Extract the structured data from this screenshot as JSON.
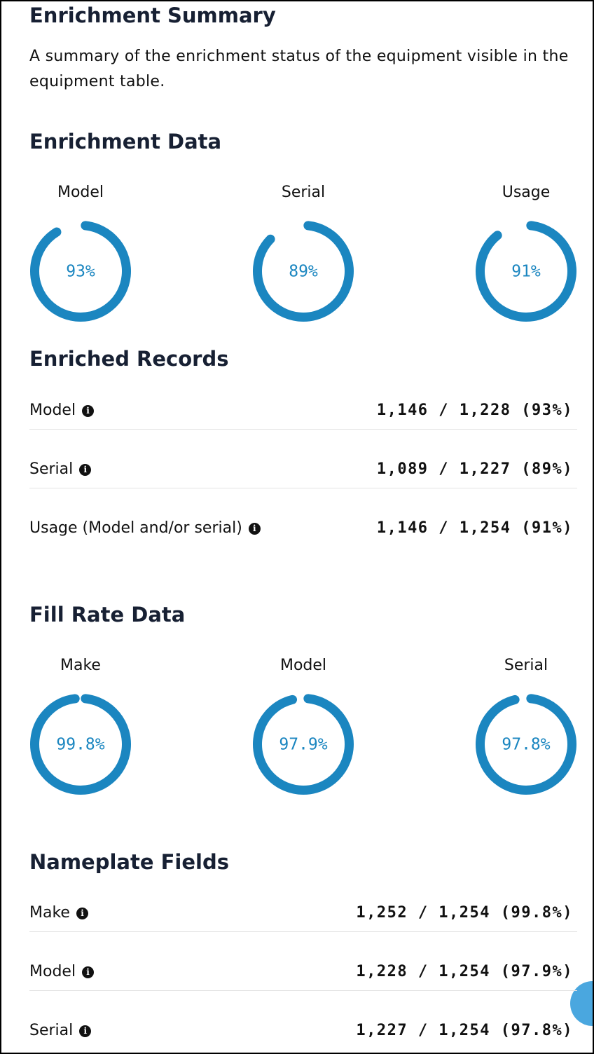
{
  "header": {
    "title": "Enrichment Summary",
    "description": "A summary of the enrichment status of the equipment visible in the equipment table."
  },
  "enrichment_data": {
    "title": "Enrichment Data",
    "gauges": [
      {
        "label": "Model",
        "value": 93,
        "value_label": "93%"
      },
      {
        "label": "Serial",
        "value": 89,
        "value_label": "89%"
      },
      {
        "label": "Usage",
        "value": 91,
        "value_label": "91%"
      }
    ]
  },
  "enriched_records": {
    "title": "Enriched Records",
    "rows": [
      {
        "label": "Model",
        "value": "1,146 / 1,228 (93%)"
      },
      {
        "label": "Serial",
        "value": "1,089 / 1,227 (89%)"
      },
      {
        "label": "Usage (Model and/or serial)",
        "value": "1,146 / 1,254 (91%)"
      }
    ]
  },
  "fill_rate_data": {
    "title": "Fill Rate Data",
    "gauges": [
      {
        "label": "Make",
        "value": 99.8,
        "value_label": "99.8%"
      },
      {
        "label": "Model",
        "value": 97.9,
        "value_label": "97.9%"
      },
      {
        "label": "Serial",
        "value": 97.8,
        "value_label": "97.8%"
      }
    ]
  },
  "nameplate_fields": {
    "title": "Nameplate Fields",
    "rows": [
      {
        "label": "Make",
        "value": "1,252 / 1,254 (99.8%)"
      },
      {
        "label": "Model",
        "value": "1,228 / 1,254 (97.9%)"
      },
      {
        "label": "Serial",
        "value": "1,227 / 1,254 (97.8%)"
      }
    ]
  }
}
